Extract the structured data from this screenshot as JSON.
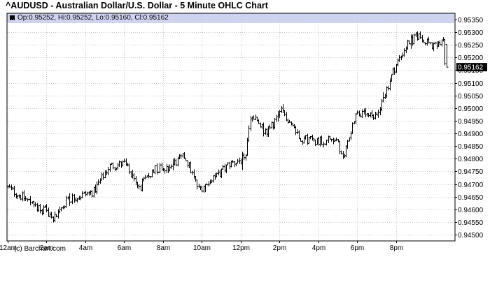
{
  "title": "^AUDUSD - Australian Dollar/U.S. Dollar - 5 Minute OHLC Chart",
  "info": "Op:0.95252, Hi:0.95252, Lo:0.95160, Cl:0.95162",
  "copyright": "(c) Barchart.com",
  "last_price_label": "0.95162",
  "colors": {
    "infobar": "#cfd3f2",
    "bars": "#000000",
    "grid": "#c8c8c8",
    "last_price_bg": "#000000"
  },
  "chart_data": {
    "type": "ohlc",
    "interval": "5 Minute",
    "x_tick_labels": [
      "12am",
      "2am",
      "4am",
      "6am",
      "8am",
      "10am",
      "12pm",
      "2pm",
      "4pm",
      "6pm",
      "8pm"
    ],
    "y_tick_labels": [
      "0.95350",
      "0.95300",
      "0.95250",
      "0.95200",
      "0.95150",
      "0.95100",
      "0.95050",
      "0.95000",
      "0.94950",
      "0.94900",
      "0.94850",
      "0.94800",
      "0.94750",
      "0.94700",
      "0.94650",
      "0.94600",
      "0.94550",
      "0.94500"
    ],
    "ylim": [
      0.94475,
      0.95375
    ],
    "x_range_hours": [
      0,
      23
    ],
    "grid": true,
    "last": {
      "open": 0.95252,
      "high": 0.95252,
      "low": 0.9516,
      "close": 0.95162
    },
    "key_points": [
      {
        "t": 0.0,
        "v": 0.9469
      },
      {
        "t": 1.0,
        "v": 0.9464
      },
      {
        "t": 2.5,
        "v": 0.9457
      },
      {
        "t": 3.2,
        "v": 0.9464
      },
      {
        "t": 4.5,
        "v": 0.9467
      },
      {
        "t": 5.3,
        "v": 0.9477
      },
      {
        "t": 6.1,
        "v": 0.9478
      },
      {
        "t": 6.8,
        "v": 0.9468
      },
      {
        "t": 7.6,
        "v": 0.9476
      },
      {
        "t": 8.4,
        "v": 0.9477
      },
      {
        "t": 9.2,
        "v": 0.9481
      },
      {
        "t": 9.9,
        "v": 0.9468
      },
      {
        "t": 10.7,
        "v": 0.9472
      },
      {
        "t": 11.5,
        "v": 0.9478
      },
      {
        "t": 12.3,
        "v": 0.948
      },
      {
        "t": 12.6,
        "v": 0.9497
      },
      {
        "t": 13.4,
        "v": 0.949
      },
      {
        "t": 14.2,
        "v": 0.9499
      },
      {
        "t": 15.2,
        "v": 0.9488
      },
      {
        "t": 16.2,
        "v": 0.9487
      },
      {
        "t": 17.0,
        "v": 0.9488
      },
      {
        "t": 17.3,
        "v": 0.9479
      },
      {
        "t": 18.0,
        "v": 0.9498
      },
      {
        "t": 19.0,
        "v": 0.9496
      },
      {
        "t": 20.0,
        "v": 0.9516
      },
      {
        "t": 20.7,
        "v": 0.9526
      },
      {
        "t": 21.3,
        "v": 0.9529
      },
      {
        "t": 22.0,
        "v": 0.9524
      },
      {
        "t": 22.5,
        "v": 0.9526
      },
      {
        "t": 22.6,
        "v": 0.95162
      }
    ]
  }
}
